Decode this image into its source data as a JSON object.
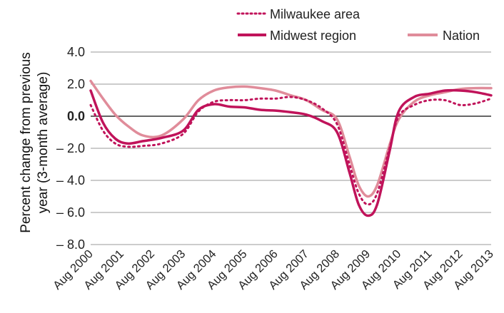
{
  "chart_data": {
    "type": "line",
    "title": "",
    "xlabel": "",
    "ylabel_lines": [
      "Percent change from previous",
      "year (3-month average)"
    ],
    "categories": [
      "Aug 2000",
      "Aug 2001",
      "Aug 2002",
      "Aug 2003",
      "Aug 2004",
      "Aug 2005",
      "Aug 2006",
      "Aug 2007",
      "Aug 2008",
      "Aug 2009",
      "Aug 2010",
      "Aug 2011",
      "Aug 2012",
      "Aug 2013"
    ],
    "ylim": [
      -8,
      4
    ],
    "ytick_values": [
      4,
      2,
      0,
      -2,
      -4,
      -6,
      -8
    ],
    "ytick_labels": [
      "4.0",
      "2.0",
      "0.0",
      "– 2.0",
      "– 4.0",
      "– 6.0",
      "– 8.0"
    ],
    "grid": true,
    "legend_position": "top",
    "series": [
      {
        "name": "Milwaukee area",
        "color": "#c0135a",
        "style": "dotted",
        "points": [
          [
            0,
            0.7
          ],
          [
            0.4,
            -0.9
          ],
          [
            0.8,
            -1.7
          ],
          [
            1.2,
            -1.9
          ],
          [
            1.7,
            -1.85
          ],
          [
            2.3,
            -1.7
          ],
          [
            3,
            -1.1
          ],
          [
            3.5,
            0.3
          ],
          [
            4,
            0.9
          ],
          [
            4.5,
            1.0
          ],
          [
            5,
            1.0
          ],
          [
            5.5,
            1.1
          ],
          [
            6,
            1.1
          ],
          [
            6.5,
            1.2
          ],
          [
            7,
            1.0
          ],
          [
            7.5,
            0.5
          ],
          [
            8,
            -0.5
          ],
          [
            8.4,
            -3.0
          ],
          [
            8.7,
            -4.8
          ],
          [
            9,
            -5.5
          ],
          [
            9.3,
            -4.8
          ],
          [
            9.7,
            -2.0
          ],
          [
            10,
            0.0
          ],
          [
            10.5,
            0.7
          ],
          [
            11,
            1.0
          ],
          [
            11.5,
            1.0
          ],
          [
            12,
            0.7
          ],
          [
            12.5,
            0.8
          ],
          [
            13,
            1.1
          ]
        ]
      },
      {
        "name": "Midwest region",
        "color": "#c0135a",
        "style": "solid",
        "points": [
          [
            0,
            1.6
          ],
          [
            0.4,
            -0.4
          ],
          [
            0.8,
            -1.4
          ],
          [
            1.2,
            -1.7
          ],
          [
            1.7,
            -1.55
          ],
          [
            2.3,
            -1.35
          ],
          [
            3,
            -0.9
          ],
          [
            3.5,
            0.4
          ],
          [
            4,
            0.75
          ],
          [
            4.5,
            0.6
          ],
          [
            5,
            0.55
          ],
          [
            5.5,
            0.4
          ],
          [
            6,
            0.35
          ],
          [
            6.5,
            0.25
          ],
          [
            7,
            0.1
          ],
          [
            7.5,
            -0.3
          ],
          [
            8,
            -1.0
          ],
          [
            8.4,
            -3.5
          ],
          [
            8.7,
            -5.5
          ],
          [
            9,
            -6.2
          ],
          [
            9.3,
            -5.5
          ],
          [
            9.7,
            -2.2
          ],
          [
            10,
            0.3
          ],
          [
            10.5,
            1.2
          ],
          [
            11,
            1.4
          ],
          [
            11.5,
            1.6
          ],
          [
            12,
            1.6
          ],
          [
            12.5,
            1.5
          ],
          [
            13,
            1.3
          ]
        ]
      },
      {
        "name": "Nation",
        "color": "#e08c9a",
        "style": "solid",
        "points": [
          [
            0,
            2.2
          ],
          [
            0.4,
            1.1
          ],
          [
            0.8,
            0.1
          ],
          [
            1.2,
            -0.6
          ],
          [
            1.7,
            -1.2
          ],
          [
            2.3,
            -1.2
          ],
          [
            3,
            -0.2
          ],
          [
            3.5,
            1.0
          ],
          [
            4,
            1.6
          ],
          [
            4.5,
            1.8
          ],
          [
            5,
            1.85
          ],
          [
            5.5,
            1.75
          ],
          [
            6,
            1.6
          ],
          [
            6.5,
            1.3
          ],
          [
            7,
            1.0
          ],
          [
            7.5,
            0.4
          ],
          [
            8,
            -0.2
          ],
          [
            8.4,
            -2.5
          ],
          [
            8.7,
            -4.3
          ],
          [
            9,
            -5.0
          ],
          [
            9.3,
            -4.3
          ],
          [
            9.7,
            -1.8
          ],
          [
            10,
            -0.2
          ],
          [
            10.5,
            0.9
          ],
          [
            11,
            1.3
          ],
          [
            11.5,
            1.5
          ],
          [
            12,
            1.7
          ],
          [
            12.5,
            1.75
          ],
          [
            13,
            1.75
          ]
        ]
      }
    ]
  }
}
